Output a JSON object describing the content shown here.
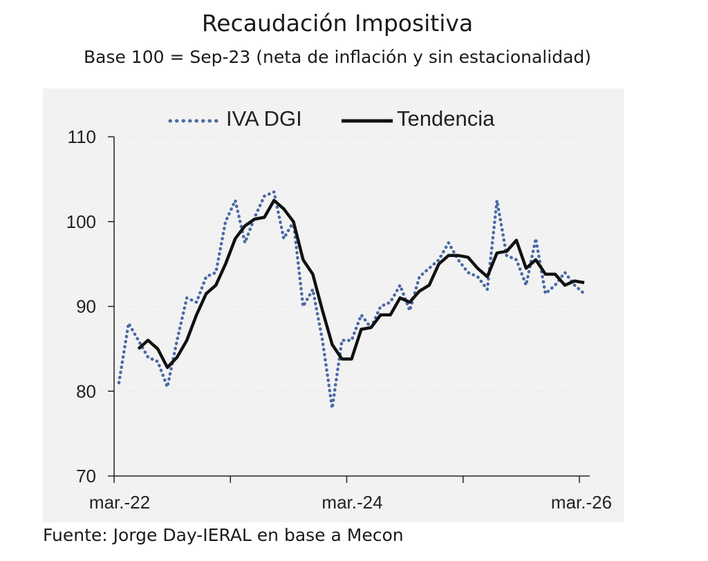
{
  "chart_data": {
    "type": "line",
    "title": "Recaudación Impositiva",
    "subtitle": "Base 100 = Sep-23 (neta de inflación y sin estacionalidad)",
    "source": "Fuente: Jorge Day-IERAL en base a Mecon",
    "xlabel": "",
    "ylabel": "",
    "ylim": [
      70,
      110
    ],
    "yticks": [
      70,
      80,
      90,
      100,
      110
    ],
    "xtick_labels": [
      "mar.-22",
      "mar.-24",
      "mar.-26"
    ],
    "x_months_labeled": [
      0,
      24,
      48
    ],
    "x_month_ticks": [
      0,
      12,
      24,
      36,
      48
    ],
    "xlim": [
      0,
      48.5
    ],
    "grid": true,
    "legend_position": "top",
    "series": [
      {
        "name": "IVA DGI",
        "style": "dotted",
        "color": "#4a6aa5",
        "start_month": 0.5,
        "values": [
          81.0,
          88.0,
          86.0,
          84.0,
          83.5,
          80.5,
          86.0,
          91.0,
          90.5,
          93.5,
          94.0,
          100.0,
          102.5,
          97.5,
          100.5,
          103.0,
          103.5,
          98.0,
          100.0,
          90.0,
          92.0,
          86.0,
          78.0,
          86.0,
          86.0,
          89.0,
          87.5,
          90.0,
          90.5,
          92.5,
          89.5,
          93.5,
          94.5,
          95.5,
          97.5,
          95.5,
          94.0,
          93.5,
          92.0,
          102.5,
          96.0,
          95.5,
          92.5,
          98.0,
          91.5,
          92.5,
          94.0,
          92.5,
          91.5
        ]
      },
      {
        "name": "Tendencia",
        "style": "solid",
        "color": "#111111",
        "start_month": 2.5,
        "values": [
          85.0,
          86.0,
          85.0,
          82.8,
          84.0,
          86.0,
          89.0,
          91.5,
          92.5,
          95.0,
          98.0,
          99.5,
          100.3,
          100.5,
          102.5,
          101.5,
          100.0,
          95.5,
          93.8,
          89.5,
          85.5,
          83.8,
          83.8,
          87.3,
          87.5,
          89.0,
          89.0,
          91.0,
          90.5,
          91.8,
          92.5,
          95.0,
          96.0,
          96.0,
          95.8,
          94.5,
          93.5,
          96.3,
          96.5,
          97.8,
          94.5,
          95.5,
          93.8,
          93.8,
          92.5,
          93.0,
          92.8
        ]
      }
    ]
  }
}
